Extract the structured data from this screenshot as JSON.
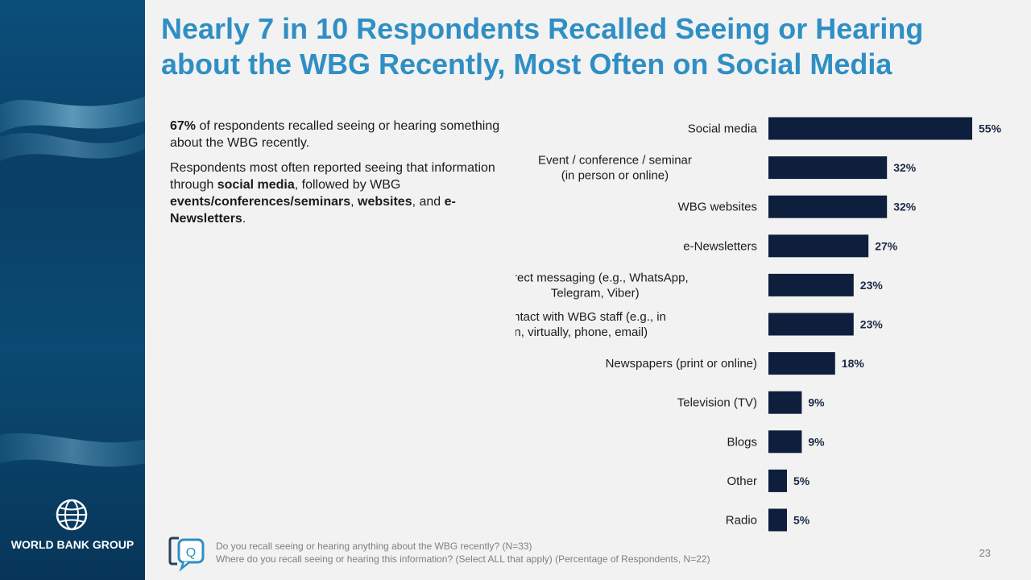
{
  "slide": {
    "title_line1": "Nearly 7 in 10 Respondents Recalled Seeing or Hearing",
    "title_line2": "about the WBG Recently, Most Often on Social Media",
    "page_number": "23"
  },
  "brand": {
    "name": "WORLD BANK GROUP",
    "logo_icon": "globe-icon",
    "accent_color": "#2f8fc4",
    "bar_color": "#0d1f3c"
  },
  "body": {
    "p1_bold": "67%",
    "p1_rest": " of respondents recalled seeing or hearing something about the WBG recently.",
    "p2_start": "Respondents most often reported seeing that information through ",
    "p2_b1": "social media",
    "p2_mid1": ", followed by WBG ",
    "p2_b2": "events/conferences/seminars",
    "p2_mid2": ", ",
    "p2_b3": "websites",
    "p2_mid3": ", and ",
    "p2_b4": "e-Newsletters",
    "p2_end": "."
  },
  "footer": {
    "icon": "question-chat-icon",
    "icon_letter": "Q",
    "question1": "Do you recall seeing or hearing anything about the WBG recently?  (N=33)",
    "question2": "Where do you recall seeing or hearing this information? (Select ALL that apply)  (Percentage of Respondents, N=22)"
  },
  "chart_data": {
    "type": "bar",
    "orientation": "horizontal",
    "categories": [
      [
        "Social media"
      ],
      [
        "Event / conference / seminar",
        "(in person or online)"
      ],
      [
        "WBG websites"
      ],
      [
        "e-Newsletters"
      ],
      [
        "Direct messaging (e.g., WhatsApp,",
        "Telegram, Viber)"
      ],
      [
        "Direct contact with WBG staff (e.g., in",
        "person, virtually, phone, email)"
      ],
      [
        "Newspapers (print or online)"
      ],
      [
        "Television (TV)"
      ],
      [
        "Blogs"
      ],
      [
        "Other"
      ],
      [
        "Radio"
      ]
    ],
    "values": [
      55,
      32,
      32,
      27,
      23,
      23,
      18,
      9,
      9,
      5,
      5
    ],
    "value_labels": [
      "55%",
      "32%",
      "32%",
      "27%",
      "23%",
      "23%",
      "18%",
      "9%",
      "9%",
      "5%",
      "5%"
    ],
    "unit": "%",
    "xlim": [
      0,
      55
    ],
    "grid": false,
    "legend": "none"
  }
}
